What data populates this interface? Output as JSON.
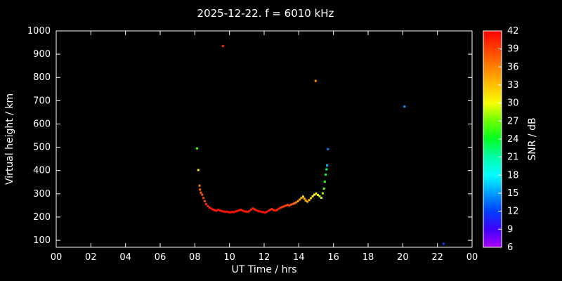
{
  "chart_data": {
    "type": "scatter",
    "title": "2025-12-22. f = 6010 kHz",
    "xlabel": "UT Time / hrs",
    "ylabel": "Virtual height / km",
    "colorbar_label": "SNR / dB",
    "xlim": [
      0,
      24
    ],
    "ylim": [
      70,
      1000
    ],
    "x_tick_values": [
      0,
      2,
      4,
      6,
      8,
      10,
      12,
      14,
      16,
      18,
      20,
      22,
      24
    ],
    "x_tick_labels": [
      "00",
      "02",
      "04",
      "06",
      "08",
      "10",
      "12",
      "14",
      "16",
      "18",
      "20",
      "22",
      "00"
    ],
    "y_tick_values": [
      100,
      200,
      300,
      400,
      500,
      600,
      700,
      800,
      900,
      1000
    ],
    "y_tick_labels": [
      "100",
      "200",
      "300",
      "400",
      "500",
      "600",
      "700",
      "800",
      "900",
      "1000"
    ],
    "colorbar": {
      "min": 6,
      "max": 42,
      "ticks": [
        6,
        9,
        12,
        15,
        18,
        21,
        24,
        27,
        30,
        33,
        36,
        39,
        42
      ]
    },
    "background_color": "#000000",
    "axis_color": "#ffffff",
    "colormap_hue_stops": [
      [
        6,
        280
      ],
      [
        9,
        255
      ],
      [
        12,
        225
      ],
      [
        15,
        203
      ],
      [
        18,
        180
      ],
      [
        21,
        160
      ],
      [
        24,
        128
      ],
      [
        27,
        95
      ],
      [
        30,
        62
      ],
      [
        33,
        45
      ],
      [
        36,
        30
      ],
      [
        39,
        15
      ],
      [
        42,
        0
      ]
    ],
    "points": [
      [
        8.13,
        495,
        26
      ],
      [
        8.2,
        402,
        31
      ],
      [
        8.27,
        335,
        36
      ],
      [
        8.3,
        318,
        37
      ],
      [
        8.35,
        305,
        38
      ],
      [
        8.42,
        296,
        38
      ],
      [
        8.5,
        282,
        39
      ],
      [
        8.57,
        268,
        39
      ],
      [
        8.65,
        256,
        40
      ],
      [
        8.75,
        247,
        40
      ],
      [
        8.85,
        241,
        40
      ],
      [
        8.95,
        236,
        41
      ],
      [
        9.05,
        232,
        41
      ],
      [
        9.15,
        229,
        41
      ],
      [
        9.25,
        227,
        41
      ],
      [
        9.35,
        231,
        41
      ],
      [
        9.45,
        228,
        41
      ],
      [
        9.55,
        226,
        41
      ],
      [
        9.62,
        935,
        40
      ],
      [
        9.65,
        224,
        41
      ],
      [
        9.75,
        222,
        41
      ],
      [
        9.85,
        223,
        41
      ],
      [
        9.95,
        221,
        41
      ],
      [
        10.05,
        220,
        41
      ],
      [
        10.15,
        222,
        41
      ],
      [
        10.25,
        221,
        41
      ],
      [
        10.35,
        224,
        41
      ],
      [
        10.45,
        226,
        41
      ],
      [
        10.55,
        229,
        41
      ],
      [
        10.65,
        231,
        40
      ],
      [
        10.75,
        228,
        41
      ],
      [
        10.85,
        225,
        41
      ],
      [
        10.95,
        223,
        41
      ],
      [
        11.05,
        222,
        41
      ],
      [
        11.15,
        226,
        41
      ],
      [
        11.25,
        232,
        41
      ],
      [
        11.35,
        237,
        40
      ],
      [
        11.45,
        233,
        40
      ],
      [
        11.55,
        229,
        41
      ],
      [
        11.65,
        226,
        41
      ],
      [
        11.75,
        224,
        41
      ],
      [
        11.85,
        222,
        41
      ],
      [
        11.95,
        221,
        41
      ],
      [
        12.05,
        219,
        41
      ],
      [
        12.15,
        222,
        41
      ],
      [
        12.25,
        227,
        41
      ],
      [
        12.35,
        231,
        40
      ],
      [
        12.45,
        234,
        40
      ],
      [
        12.55,
        230,
        40
      ],
      [
        12.65,
        228,
        41
      ],
      [
        12.75,
        231,
        40
      ],
      [
        12.85,
        236,
        40
      ],
      [
        12.95,
        240,
        40
      ],
      [
        13.05,
        243,
        39
      ],
      [
        13.15,
        246,
        39
      ],
      [
        13.25,
        249,
        39
      ],
      [
        13.35,
        252,
        38
      ],
      [
        13.45,
        249,
        39
      ],
      [
        13.55,
        253,
        38
      ],
      [
        13.65,
        256,
        38
      ],
      [
        13.75,
        259,
        37
      ],
      [
        13.85,
        263,
        36
      ],
      [
        13.95,
        268,
        35
      ],
      [
        14.05,
        275,
        34
      ],
      [
        14.15,
        282,
        33
      ],
      [
        14.25,
        288,
        32
      ],
      [
        14.32,
        279,
        33
      ],
      [
        14.4,
        271,
        34
      ],
      [
        14.5,
        266,
        34
      ],
      [
        14.6,
        273,
        33
      ],
      [
        14.7,
        281,
        32
      ],
      [
        14.8,
        289,
        31
      ],
      [
        14.9,
        296,
        30
      ],
      [
        14.97,
        785,
        35
      ],
      [
        15.0,
        301,
        30
      ],
      [
        15.1,
        295,
        30
      ],
      [
        15.2,
        289,
        29
      ],
      [
        15.3,
        283,
        29
      ],
      [
        15.38,
        302,
        28
      ],
      [
        15.45,
        322,
        27
      ],
      [
        15.5,
        352,
        26
      ],
      [
        15.55,
        382,
        24
      ],
      [
        15.6,
        405,
        22
      ],
      [
        15.63,
        422,
        16
      ],
      [
        15.68,
        492,
        14
      ],
      [
        20.1,
        675,
        15
      ],
      [
        22.35,
        85,
        12
      ]
    ]
  }
}
